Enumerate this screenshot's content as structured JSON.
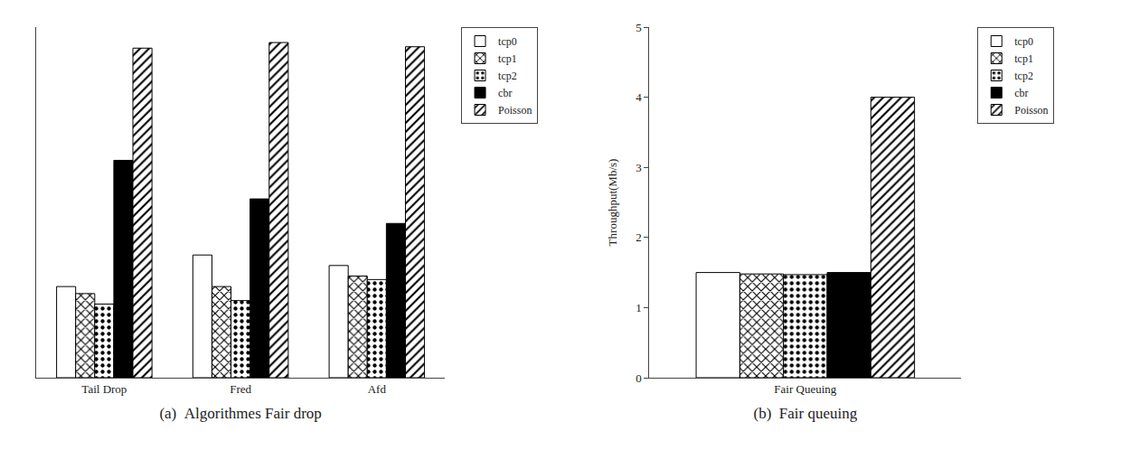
{
  "chart_data": [
    {
      "type": "bar",
      "x_label": "(a)  Algorithmes Fair drop",
      "categories": [
        "Tail Drop",
        "Fred",
        "Afd"
      ],
      "series": [
        {
          "name": "tcp0",
          "color": "white",
          "marker": "none",
          "values": [
            1.3,
            1.75,
            1.6
          ]
        },
        {
          "name": "tcp1",
          "color": "white",
          "marker": "crosshatch",
          "values": [
            1.2,
            1.3,
            1.45
          ]
        },
        {
          "name": "tcp2",
          "color": "white",
          "marker": "dots",
          "values": [
            1.05,
            1.1,
            1.4
          ]
        },
        {
          "name": "cbr",
          "color": "black",
          "marker": "solid",
          "values": [
            3.1,
            2.55,
            2.2
          ]
        },
        {
          "name": "Poisson",
          "color": "white",
          "marker": "diagonal",
          "values": [
            4.7,
            4.78,
            4.72
          ]
        }
      ],
      "ylim": [
        0,
        5
      ],
      "tick_labels": "x",
      "grid": false,
      "legend": "upper right"
    },
    {
      "type": "bar",
      "x_label": "(b)  Fair queuing",
      "y_label": "Throughput(Mb/s)",
      "categories": [
        "Fair Queuing"
      ],
      "series": [
        {
          "name": "tcp0",
          "color": "white",
          "marker": "none",
          "values": [
            1.5
          ]
        },
        {
          "name": "tcp1",
          "color": "white",
          "marker": "crosshatch",
          "values": [
            1.48
          ]
        },
        {
          "name": "tcp2",
          "color": "white",
          "marker": "dots",
          "values": [
            1.47
          ]
        },
        {
          "name": "cbr",
          "color": "black",
          "marker": "solid",
          "values": [
            1.5
          ]
        },
        {
          "name": "Poisson",
          "color": "white",
          "marker": "diagonal",
          "values": [
            4.0
          ]
        }
      ],
      "ylim": [
        0,
        5
      ],
      "yticks": [
        0,
        1,
        2,
        3,
        4,
        5
      ],
      "grid": false,
      "legend": "upper right"
    }
  ]
}
